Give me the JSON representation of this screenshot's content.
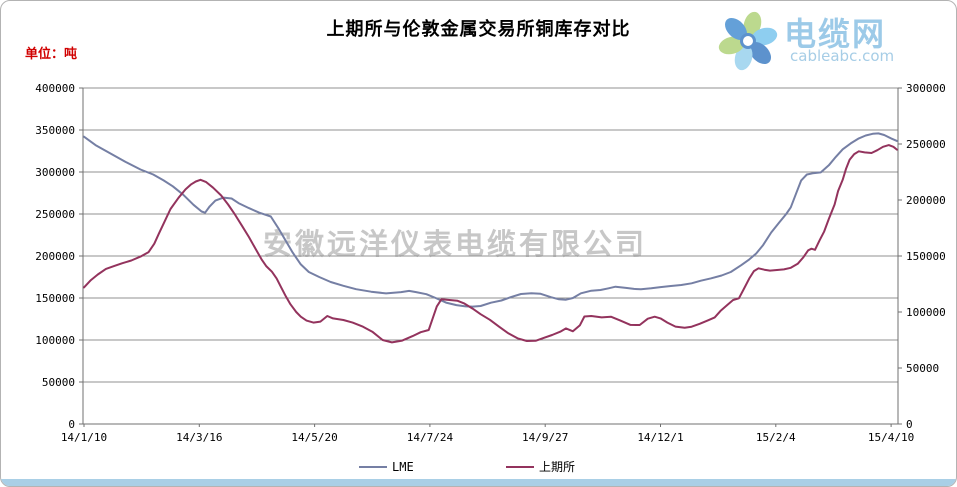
{
  "page": {
    "title": "上期所与伦敦金属交易所铜库存对比",
    "unit_label": "单位：吨",
    "watermark": "安徽远洋仪表电缆有限公司"
  },
  "logo": {
    "name": "电缆网",
    "domain": "cableabc.com",
    "petal_colors": [
      "#bcd98e",
      "#8ecef0",
      "#5d92cd",
      "#a8d8f0",
      "#bcd98e",
      "#64a0d8"
    ],
    "text_color": "#9ccae8"
  },
  "colors": {
    "grid": "#909090",
    "axis": "#707070",
    "lme_line": "#757fa4",
    "shfe_line": "#93335d",
    "watermark": "#c7c7c7",
    "unit_label": "#d00000",
    "bottom_bar": "#a9cfe6"
  },
  "chart_data": {
    "type": "line",
    "title": "上期所与伦敦金属交易所铜库存对比",
    "grid": true,
    "x_tick_labels": [
      "14/1/10",
      "14/3/16",
      "14/5/20",
      "14/7/24",
      "14/9/27",
      "14/12/1",
      "15/2/4",
      "15/4/10"
    ],
    "y_axis_left": {
      "min": 0,
      "max": 400000,
      "tick_step": 50000,
      "tick_labels": [
        "400000",
        "350000",
        "300000",
        "250000",
        "200000",
        "150000",
        "100000",
        "50000",
        "0"
      ]
    },
    "y_axis_right": {
      "min": 0,
      "max": 300000,
      "tick_step": 50000,
      "tick_labels": [
        "300000",
        "250000",
        "200000",
        "150000",
        "100000",
        "50000",
        "0"
      ]
    },
    "legend_position": "bottom",
    "legend": [
      {
        "name": "LME",
        "axis": "left"
      },
      {
        "name": "上期所",
        "axis": "right"
      }
    ],
    "series": [
      {
        "name": "LME",
        "axis": "left",
        "points": [
          [
            0.0,
            342000
          ],
          [
            0.1,
            332000
          ],
          [
            0.23,
            322000
          ],
          [
            0.36,
            312000
          ],
          [
            0.49,
            303000
          ],
          [
            0.6,
            297000
          ],
          [
            0.69,
            290000
          ],
          [
            0.77,
            283000
          ],
          [
            0.86,
            273000
          ],
          [
            0.95,
            261000
          ],
          [
            1.02,
            253000
          ],
          [
            1.05,
            251500
          ],
          [
            1.09,
            259000
          ],
          [
            1.14,
            266000
          ],
          [
            1.21,
            269500
          ],
          [
            1.28,
            268500
          ],
          [
            1.34,
            263000
          ],
          [
            1.43,
            257000
          ],
          [
            1.52,
            251500
          ],
          [
            1.62,
            247000
          ],
          [
            1.69,
            232000
          ],
          [
            1.75,
            218000
          ],
          [
            1.81,
            204000
          ],
          [
            1.88,
            190000
          ],
          [
            1.95,
            181000
          ],
          [
            2.04,
            175000
          ],
          [
            2.14,
            169000
          ],
          [
            2.25,
            164500
          ],
          [
            2.36,
            160500
          ],
          [
            2.49,
            157500
          ],
          [
            2.62,
            155500
          ],
          [
            2.75,
            157000
          ],
          [
            2.82,
            158500
          ],
          [
            2.88,
            157000
          ],
          [
            2.97,
            154500
          ],
          [
            3.05,
            150000
          ],
          [
            3.14,
            144500
          ],
          [
            3.23,
            141500
          ],
          [
            3.31,
            140000
          ],
          [
            3.37,
            139800
          ],
          [
            3.44,
            140500
          ],
          [
            3.53,
            144400
          ],
          [
            3.62,
            147000
          ],
          [
            3.7,
            151000
          ],
          [
            3.79,
            154800
          ],
          [
            3.88,
            155600
          ],
          [
            3.96,
            155000
          ],
          [
            4.05,
            151000
          ],
          [
            4.12,
            148500
          ],
          [
            4.18,
            148000
          ],
          [
            4.24,
            150000
          ],
          [
            4.31,
            155600
          ],
          [
            4.4,
            158700
          ],
          [
            4.48,
            159500
          ],
          [
            4.55,
            161500
          ],
          [
            4.61,
            163500
          ],
          [
            4.7,
            162000
          ],
          [
            4.77,
            160800
          ],
          [
            4.83,
            160300
          ],
          [
            4.92,
            161500
          ],
          [
            5.0,
            163000
          ],
          [
            5.09,
            164300
          ],
          [
            5.18,
            165500
          ],
          [
            5.27,
            167500
          ],
          [
            5.35,
            170600
          ],
          [
            5.44,
            173400
          ],
          [
            5.53,
            176800
          ],
          [
            5.61,
            181000
          ],
          [
            5.7,
            189000
          ],
          [
            5.77,
            196000
          ],
          [
            5.83,
            203000
          ],
          [
            5.89,
            213000
          ],
          [
            5.96,
            228000
          ],
          [
            6.03,
            240000
          ],
          [
            6.09,
            250000
          ],
          [
            6.13,
            258000
          ],
          [
            6.18,
            276000
          ],
          [
            6.22,
            290000
          ],
          [
            6.27,
            297000
          ],
          [
            6.32,
            298500
          ],
          [
            6.39,
            299500
          ],
          [
            6.46,
            308000
          ],
          [
            6.52,
            318000
          ],
          [
            6.58,
            327000
          ],
          [
            6.65,
            334000
          ],
          [
            6.72,
            340000
          ],
          [
            6.78,
            343500
          ],
          [
            6.84,
            345500
          ],
          [
            6.89,
            346000
          ],
          [
            6.94,
            344000
          ],
          [
            7.0,
            340000
          ],
          [
            7.05,
            337000
          ]
        ]
      },
      {
        "name": "上期所",
        "axis": "right",
        "points": [
          [
            0.0,
            122000
          ],
          [
            0.06,
            128500
          ],
          [
            0.12,
            133500
          ],
          [
            0.19,
            138500
          ],
          [
            0.26,
            141000
          ],
          [
            0.33,
            143500
          ],
          [
            0.41,
            146000
          ],
          [
            0.49,
            149500
          ],
          [
            0.56,
            153500
          ],
          [
            0.61,
            161000
          ],
          [
            0.65,
            170000
          ],
          [
            0.7,
            181000
          ],
          [
            0.75,
            192000
          ],
          [
            0.82,
            202000
          ],
          [
            0.88,
            209500
          ],
          [
            0.93,
            214000
          ],
          [
            0.97,
            216500
          ],
          [
            1.01,
            218000
          ],
          [
            1.06,
            216000
          ],
          [
            1.12,
            211000
          ],
          [
            1.19,
            204000
          ],
          [
            1.25,
            196000
          ],
          [
            1.31,
            187000
          ],
          [
            1.37,
            177000
          ],
          [
            1.43,
            167000
          ],
          [
            1.49,
            156000
          ],
          [
            1.54,
            147000
          ],
          [
            1.58,
            141000
          ],
          [
            1.63,
            136000
          ],
          [
            1.67,
            130000
          ],
          [
            1.71,
            122000
          ],
          [
            1.75,
            114000
          ],
          [
            1.79,
            107000
          ],
          [
            1.84,
            100000
          ],
          [
            1.88,
            95800
          ],
          [
            1.93,
            92300
          ],
          [
            1.99,
            90500
          ],
          [
            2.05,
            91400
          ],
          [
            2.11,
            96400
          ],
          [
            2.16,
            94300
          ],
          [
            2.25,
            92900
          ],
          [
            2.33,
            90500
          ],
          [
            2.42,
            86900
          ],
          [
            2.5,
            82400
          ],
          [
            2.59,
            75000
          ],
          [
            2.67,
            72900
          ],
          [
            2.76,
            74500
          ],
          [
            2.85,
            78500
          ],
          [
            2.92,
            82000
          ],
          [
            2.99,
            83900
          ],
          [
            3.02,
            93000
          ],
          [
            3.06,
            105000
          ],
          [
            3.1,
            111300
          ],
          [
            3.17,
            110700
          ],
          [
            3.24,
            110000
          ],
          [
            3.3,
            107500
          ],
          [
            3.37,
            103000
          ],
          [
            3.44,
            98000
          ],
          [
            3.52,
            93000
          ],
          [
            3.6,
            86900
          ],
          [
            3.68,
            81000
          ],
          [
            3.76,
            76500
          ],
          [
            3.84,
            74100
          ],
          [
            3.92,
            74400
          ],
          [
            3.99,
            77000
          ],
          [
            4.06,
            79500
          ],
          [
            4.13,
            82400
          ],
          [
            4.18,
            85400
          ],
          [
            4.24,
            82800
          ],
          [
            4.3,
            88000
          ],
          [
            4.34,
            96000
          ],
          [
            4.4,
            96400
          ],
          [
            4.49,
            95200
          ],
          [
            4.57,
            95800
          ],
          [
            4.65,
            92500
          ],
          [
            4.74,
            88500
          ],
          [
            4.82,
            88400
          ],
          [
            4.89,
            94000
          ],
          [
            4.95,
            95800
          ],
          [
            5.0,
            94300
          ],
          [
            5.06,
            90500
          ],
          [
            5.13,
            87000
          ],
          [
            5.21,
            86000
          ],
          [
            5.27,
            86900
          ],
          [
            5.34,
            89500
          ],
          [
            5.41,
            92500
          ],
          [
            5.47,
            95200
          ],
          [
            5.52,
            101000
          ],
          [
            5.58,
            106300
          ],
          [
            5.63,
            110700
          ],
          [
            5.68,
            112200
          ],
          [
            5.72,
            120000
          ],
          [
            5.77,
            130000
          ],
          [
            5.81,
            136500
          ],
          [
            5.85,
            139000
          ],
          [
            5.9,
            137800
          ],
          [
            5.95,
            137000
          ],
          [
            6.01,
            137500
          ],
          [
            6.07,
            138000
          ],
          [
            6.13,
            139500
          ],
          [
            6.19,
            143000
          ],
          [
            6.24,
            149000
          ],
          [
            6.28,
            155000
          ],
          [
            6.31,
            156500
          ],
          [
            6.34,
            155500
          ],
          [
            6.38,
            164000
          ],
          [
            6.42,
            172000
          ],
          [
            6.46,
            183000
          ],
          [
            6.51,
            196000
          ],
          [
            6.54,
            208000
          ],
          [
            6.58,
            218000
          ],
          [
            6.61,
            228000
          ],
          [
            6.64,
            236000
          ],
          [
            6.68,
            241000
          ],
          [
            6.72,
            243500
          ],
          [
            6.77,
            242500
          ],
          [
            6.83,
            242000
          ],
          [
            6.88,
            244500
          ],
          [
            6.93,
            247500
          ],
          [
            6.98,
            249000
          ],
          [
            7.02,
            247500
          ],
          [
            7.05,
            245000
          ]
        ]
      }
    ]
  }
}
